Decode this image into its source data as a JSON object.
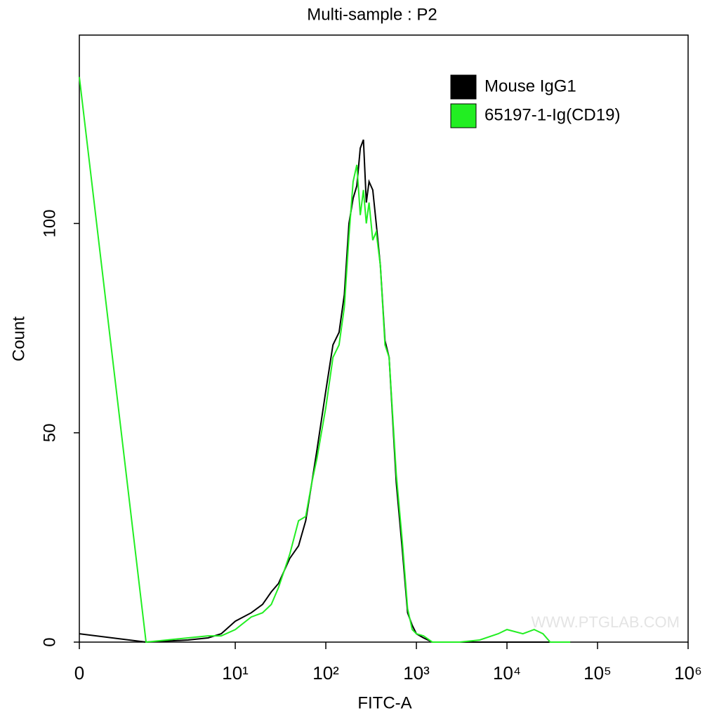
{
  "chart_data": {
    "type": "line",
    "title": "Multi-sample : P2",
    "x_label": "FITC-A",
    "y_label": "Count",
    "watermark": "WWW.PTGLAB.COM",
    "xscale": "biexponential",
    "xlim": [
      0,
      1000000
    ],
    "xticks": [
      0,
      {
        "value": 10,
        "label": "10¹"
      },
      {
        "value": 100,
        "label": "10²"
      },
      {
        "value": 1000,
        "label": "10³"
      },
      {
        "value": 10000,
        "label": "10⁴"
      },
      {
        "value": 100000,
        "label": "10⁵"
      },
      {
        "value": 1000000,
        "label": "10⁶"
      }
    ],
    "ylim": [
      0,
      145
    ],
    "yticks": [
      0,
      50,
      100
    ],
    "legend": "top-right",
    "x": [
      0,
      1,
      3,
      5,
      7,
      10,
      15,
      20,
      25,
      30,
      40,
      50,
      60,
      70,
      80,
      100,
      120,
      140,
      160,
      180,
      200,
      220,
      240,
      260,
      280,
      300,
      330,
      360,
      400,
      450,
      500,
      600,
      700,
      800,
      900,
      1000,
      1200,
      1500,
      3000,
      5000,
      8000,
      10000,
      15000,
      20000,
      25000,
      30000,
      50000
    ],
    "series": [
      {
        "name": "Mouse IgG1",
        "color": "#000000",
        "values": [
          2,
          0,
          0.5,
          1,
          2,
          5,
          7,
          9,
          12,
          14,
          20,
          23,
          29,
          38,
          46,
          60,
          71,
          74,
          83,
          100,
          106,
          109,
          118,
          120,
          105,
          110,
          108,
          100,
          90,
          72,
          68,
          38,
          22,
          7,
          4,
          2,
          1,
          0,
          0,
          0,
          0,
          0,
          0,
          0,
          0,
          0,
          0
        ]
      },
      {
        "name": "65197-1-Ig(CD19)",
        "color": "#22ee22",
        "values": [
          135,
          0,
          1,
          1.5,
          1.5,
          3,
          6,
          7,
          9,
          13,
          21,
          29,
          30,
          38,
          44,
          56,
          68,
          71,
          80,
          97,
          110,
          114,
          102,
          108,
          100,
          105,
          96,
          98,
          90,
          71,
          68,
          40,
          24,
          8,
          3,
          2,
          1.5,
          0,
          0,
          0.5,
          2,
          3,
          2,
          3,
          2,
          0,
          0
        ]
      }
    ]
  }
}
